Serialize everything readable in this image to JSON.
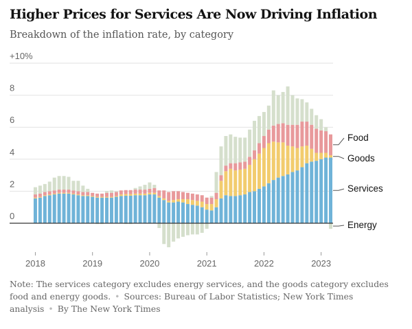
{
  "title": "Higher Prices for Services Are Now Driving Inflation",
  "subtitle": "Breakdown of the inflation rate, by category",
  "note": {
    "text": "Note: The services category excludes energy services, and the goods category excludes food and energy goods.",
    "sources": "Sources: Bureau of Labor Statistics; New York Times analysis",
    "byline": "By The New York Times"
  },
  "chart_data": {
    "type": "bar",
    "stacked": true,
    "ylim": [
      -2,
      10
    ],
    "yticks": [
      {
        "value": 10,
        "label": "+10%"
      },
      {
        "value": 8,
        "label": "8"
      },
      {
        "value": 6,
        "label": "6"
      },
      {
        "value": 4,
        "label": "4"
      },
      {
        "value": 2,
        "label": "2"
      },
      {
        "value": 0,
        "label": "0"
      }
    ],
    "xticks": [
      {
        "index": 0,
        "label": "2018"
      },
      {
        "index": 12,
        "label": "2019"
      },
      {
        "index": 24,
        "label": "2020"
      },
      {
        "index": 36,
        "label": "2021"
      },
      {
        "index": 48,
        "label": "2022"
      },
      {
        "index": 60,
        "label": "2023"
      }
    ],
    "categories": [
      "Jan 2018",
      "Feb 2018",
      "Mar 2018",
      "Apr 2018",
      "May 2018",
      "Jun 2018",
      "Jul 2018",
      "Aug 2018",
      "Sep 2018",
      "Oct 2018",
      "Nov 2018",
      "Dec 2018",
      "Jan 2019",
      "Feb 2019",
      "Mar 2019",
      "Apr 2019",
      "May 2019",
      "Jun 2019",
      "Jul 2019",
      "Aug 2019",
      "Sep 2019",
      "Oct 2019",
      "Nov 2019",
      "Dec 2019",
      "Jan 2020",
      "Feb 2020",
      "Mar 2020",
      "Apr 2020",
      "May 2020",
      "Jun 2020",
      "Jul 2020",
      "Aug 2020",
      "Sep 2020",
      "Oct 2020",
      "Nov 2020",
      "Dec 2020",
      "Jan 2021",
      "Feb 2021",
      "Mar 2021",
      "Apr 2021",
      "May 2021",
      "Jun 2021",
      "Jul 2021",
      "Aug 2021",
      "Sep 2021",
      "Oct 2021",
      "Nov 2021",
      "Dec 2021",
      "Jan 2022",
      "Feb 2022",
      "Mar 2022",
      "Apr 2022",
      "May 2022",
      "Jun 2022",
      "Jul 2022",
      "Aug 2022",
      "Sep 2022",
      "Oct 2022",
      "Nov 2022",
      "Dec 2022",
      "Jan 2023",
      "Feb 2023",
      "Mar 2023"
    ],
    "series": [
      {
        "name": "Services",
        "color": "#6fb3d8",
        "values": [
          1.55,
          1.6,
          1.7,
          1.75,
          1.8,
          1.85,
          1.85,
          1.85,
          1.8,
          1.75,
          1.7,
          1.7,
          1.65,
          1.6,
          1.6,
          1.6,
          1.6,
          1.65,
          1.7,
          1.72,
          1.72,
          1.75,
          1.75,
          1.75,
          1.8,
          1.8,
          1.6,
          1.45,
          1.3,
          1.3,
          1.35,
          1.3,
          1.2,
          1.15,
          1.1,
          1.0,
          0.85,
          0.8,
          1.0,
          1.55,
          1.75,
          1.7,
          1.7,
          1.75,
          1.8,
          1.95,
          2.0,
          2.15,
          2.3,
          2.5,
          2.7,
          2.85,
          2.95,
          3.05,
          3.2,
          3.3,
          3.5,
          3.75,
          3.85,
          3.9,
          4.0,
          4.1,
          4.1
        ]
      },
      {
        "name": "Goods",
        "color": "#f2cc6e",
        "values": [
          0.05,
          0.05,
          0.05,
          0.05,
          0.05,
          0.05,
          0.05,
          0.05,
          0.05,
          0.05,
          0.05,
          0.05,
          0.05,
          0.05,
          0.05,
          0.05,
          0.05,
          0.05,
          0.1,
          0.1,
          0.1,
          0.1,
          0.1,
          0.1,
          0.1,
          0.1,
          0.1,
          0.1,
          0.1,
          0.15,
          0.15,
          0.2,
          0.3,
          0.3,
          0.3,
          0.35,
          0.35,
          0.4,
          0.5,
          1.1,
          1.5,
          1.7,
          1.6,
          1.6,
          1.6,
          1.7,
          2.0,
          2.2,
          2.4,
          2.5,
          2.4,
          2.2,
          2.1,
          1.8,
          1.6,
          1.4,
          1.3,
          1.1,
          0.8,
          0.5,
          0.4,
          0.3,
          0.15
        ]
      },
      {
        "name": "Food",
        "color": "#e8999b",
        "values": [
          0.2,
          0.2,
          0.2,
          0.2,
          0.2,
          0.2,
          0.2,
          0.2,
          0.2,
          0.2,
          0.2,
          0.2,
          0.2,
          0.2,
          0.2,
          0.25,
          0.25,
          0.25,
          0.25,
          0.25,
          0.25,
          0.25,
          0.25,
          0.25,
          0.25,
          0.3,
          0.35,
          0.5,
          0.55,
          0.55,
          0.5,
          0.45,
          0.4,
          0.4,
          0.4,
          0.4,
          0.4,
          0.4,
          0.4,
          0.35,
          0.35,
          0.35,
          0.45,
          0.45,
          0.45,
          0.5,
          0.55,
          0.65,
          0.75,
          0.85,
          1.0,
          1.15,
          1.2,
          1.3,
          1.35,
          1.45,
          1.55,
          1.5,
          1.5,
          1.5,
          1.4,
          1.35,
          1.3
        ]
      },
      {
        "name": "Energy",
        "color": "#d5dfcc",
        "values": [
          0.45,
          0.5,
          0.5,
          0.6,
          0.8,
          0.85,
          0.85,
          0.8,
          0.6,
          0.65,
          0.4,
          0.2,
          0.0,
          -0.05,
          -0.05,
          0.1,
          0.15,
          0.05,
          0.0,
          -0.05,
          -0.05,
          0.1,
          0.2,
          0.3,
          0.4,
          0.2,
          -0.3,
          -1.3,
          -1.5,
          -1.15,
          -0.95,
          -0.85,
          -0.75,
          -0.7,
          -0.7,
          -0.6,
          -0.35,
          0.1,
          1.3,
          1.8,
          1.85,
          1.8,
          1.65,
          1.55,
          1.5,
          1.7,
          1.85,
          1.7,
          1.5,
          1.5,
          2.2,
          1.8,
          1.95,
          2.4,
          1.85,
          1.65,
          1.4,
          1.2,
          1.0,
          0.85,
          0.7,
          0.25,
          -0.35
        ]
      }
    ],
    "legend_labels": [
      "Food",
      "Goods",
      "Services",
      "Energy"
    ]
  }
}
